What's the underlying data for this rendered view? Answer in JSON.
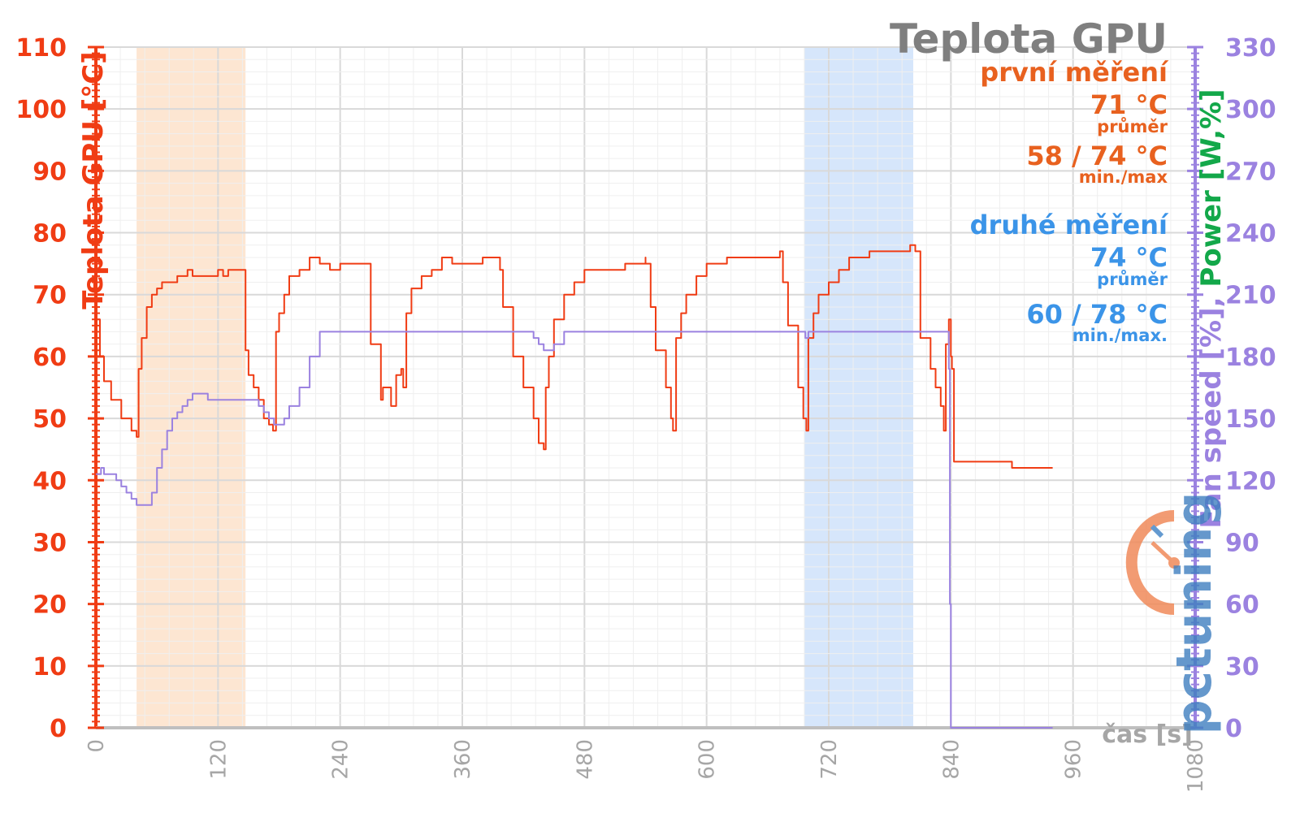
{
  "chart_data": {
    "type": "line",
    "title": "Teplota GPU",
    "xlabel": "čas [s]",
    "ylabel_left": "Teplota GPU [°C]",
    "ylabel_right": [
      {
        "text": "Fan speed [%]",
        "color": "#9b82e0"
      },
      {
        "text": ", ",
        "color": "#9b82e0"
      },
      {
        "text": "Power [W,%]",
        "color": "#13a84a"
      }
    ],
    "xlim": [
      0,
      1080
    ],
    "ylim_left": [
      0,
      110
    ],
    "ylim_right": [
      0,
      330
    ],
    "x_ticks": [
      "0",
      "120",
      "240",
      "360",
      "480",
      "600",
      "720",
      "840",
      "960",
      "1080"
    ],
    "y_ticks_left": [
      "0",
      "10",
      "20",
      "30",
      "40",
      "50",
      "60",
      "70",
      "80",
      "90",
      "100",
      "110"
    ],
    "y_ticks_right": [
      "0",
      "30",
      "60",
      "90",
      "120",
      "150",
      "180",
      "210",
      "240",
      "270",
      "300",
      "330"
    ],
    "grid": true,
    "highlight_bands": [
      {
        "x_start": 40,
        "x_end": 147,
        "color": "#fde6d2"
      },
      {
        "x_start": 696,
        "x_end": 803,
        "color": "#d6e6fb"
      }
    ],
    "series": [
      {
        "color": "#f03c14",
        "axis": "left",
        "x": [
          0,
          2,
          4,
          8,
          15,
          25,
          35,
          40,
          42,
          45,
          50,
          55,
          60,
          65,
          70,
          80,
          90,
          95,
          100,
          110,
          120,
          125,
          130,
          140,
          145,
          147,
          150,
          155,
          160,
          165,
          170,
          174,
          177,
          180,
          185,
          190,
          200,
          210,
          220,
          225,
          230,
          240,
          250,
          260,
          270,
          280,
          282,
          290,
          295,
          300,
          302,
          305,
          310,
          320,
          330,
          340,
          350,
          360,
          370,
          380,
          397,
          400,
          410,
          420,
          430,
          435,
          440,
          442,
          445,
          450,
          460,
          470,
          480,
          500,
          520,
          540,
          540,
          545,
          550,
          560,
          565,
          567,
          570,
          575,
          580,
          590,
          600,
          620,
          640,
          660,
          672,
          675,
          680,
          690,
          695,
          698,
          700,
          705,
          710,
          720,
          730,
          740,
          760,
          780,
          800,
          805,
          810,
          820,
          825,
          830,
          833,
          835,
          838,
          840,
          841,
          843,
          850,
          880,
          900,
          920,
          940
        ],
        "values": [
          66,
          66,
          60,
          56,
          53,
          50,
          48,
          47,
          58,
          63,
          68,
          70,
          71,
          72,
          72,
          73,
          74,
          73,
          73,
          73,
          74,
          73,
          74,
          74,
          74,
          61,
          57,
          55,
          53,
          50,
          49,
          48,
          64,
          67,
          70,
          73,
          74,
          76,
          75,
          75,
          74,
          75,
          75,
          75,
          62,
          53,
          55,
          52,
          57,
          58,
          55,
          67,
          71,
          73,
          74,
          76,
          75,
          75,
          75,
          76,
          74,
          68,
          60,
          55,
          50,
          46,
          45,
          55,
          60,
          66,
          70,
          72,
          74,
          74,
          75,
          76,
          75,
          68,
          61,
          55,
          50,
          48,
          63,
          67,
          70,
          73,
          75,
          76,
          76,
          76,
          77,
          72,
          65,
          55,
          50,
          48,
          63,
          67,
          70,
          72,
          74,
          76,
          77,
          77,
          78,
          77,
          63,
          58,
          55,
          52,
          48,
          62,
          66,
          60,
          58,
          43,
          43,
          43,
          42,
          42,
          42
        ]
      },
      {
        "color": "#9b82e0",
        "axis": "left",
        "x": [
          0,
          3,
          5,
          8,
          15,
          20,
          25,
          30,
          35,
          40,
          50,
          55,
          60,
          65,
          70,
          75,
          80,
          85,
          90,
          95,
          100,
          110,
          120,
          130,
          140,
          150,
          160,
          165,
          170,
          175,
          180,
          185,
          190,
          200,
          210,
          220,
          230,
          240,
          260,
          280,
          300,
          320,
          340,
          360,
          380,
          400,
          420,
          430,
          435,
          440,
          450,
          460,
          480,
          500,
          520,
          540,
          560,
          580,
          600,
          620,
          640,
          660,
          680,
          690,
          697,
          700,
          710,
          720,
          740,
          760,
          780,
          800,
          820,
          835,
          838,
          839,
          840,
          842,
          880,
          940
        ],
        "values": [
          41,
          41,
          42,
          41,
          41,
          40,
          39,
          38,
          37,
          36,
          36,
          38,
          42,
          45,
          48,
          50,
          51,
          52,
          53,
          54,
          54,
          53,
          53,
          53,
          53,
          53,
          52,
          51,
          50,
          49,
          49,
          50,
          52,
          55,
          60,
          64,
          64,
          64,
          64,
          64,
          64,
          64,
          64,
          64,
          64,
          64,
          64,
          63,
          62,
          61,
          62,
          64,
          64,
          64,
          64,
          64,
          64,
          64,
          64,
          64,
          64,
          64,
          64,
          64,
          63,
          64,
          64,
          64,
          64,
          64,
          64,
          64,
          64,
          64,
          58,
          20,
          0,
          0,
          0,
          0
        ]
      }
    ]
  },
  "info_box": {
    "title": "Teplota GPU",
    "first_label": "první měření",
    "first_avg": "71 °C",
    "first_avg_label": "průměr",
    "first_minmax": "58 / 74 °C",
    "first_minmax_label": "min./max",
    "second_label": "druhé měření",
    "second_avg": "74 °C",
    "second_avg_label": "průměr",
    "second_minmax": "60 / 78 °C",
    "second_minmax_label": "min./max."
  },
  "logo": {
    "text": "pctuning",
    "icon": "stopwatch-icon"
  },
  "colors": {
    "temp": "#f03c14",
    "fan": "#9b82e0",
    "power": "#13a84a",
    "first": "#e8611f",
    "second": "#3b94e8",
    "title": "#7f7f7f"
  }
}
